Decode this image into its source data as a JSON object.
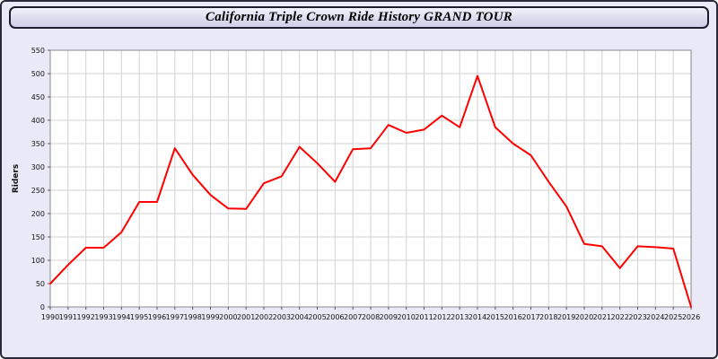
{
  "header": {
    "title": "California Triple Crown Ride History GRAND TOUR"
  },
  "colors": {
    "line": "#ff0000",
    "page_background": "#e9e9f7",
    "titlebar_background": "#dcdcf0",
    "grid": "#d2d2d2",
    "plot_border": "#888888"
  },
  "chart_data": {
    "type": "line",
    "title": "California Triple Crown Ride History GRAND TOUR",
    "xlabel": "",
    "ylabel": "Riders",
    "ylim": [
      0,
      550
    ],
    "ytick_step": 50,
    "grid": true,
    "legend": "none",
    "x": [
      1990,
      1991,
      1992,
      1993,
      1994,
      1995,
      1996,
      1997,
      1998,
      1999,
      2000,
      2001,
      2002,
      2003,
      2004,
      2005,
      2006,
      2007,
      2008,
      2009,
      2010,
      2011,
      2012,
      2013,
      2014,
      2015,
      2016,
      2017,
      2018,
      2019,
      2020,
      2021,
      2022,
      2023,
      2024,
      2025,
      2026
    ],
    "series": [
      {
        "name": "Riders",
        "color": "#ff0000",
        "values": [
          50,
          90,
          127,
          127,
          160,
          225,
          225,
          340,
          283,
          240,
          211,
          210,
          265,
          280,
          343,
          308,
          268,
          338,
          340,
          390,
          373,
          380,
          410,
          385,
          495,
          385,
          350,
          325,
          268,
          215,
          135,
          130,
          83,
          130,
          128,
          125,
          0
        ]
      }
    ]
  }
}
